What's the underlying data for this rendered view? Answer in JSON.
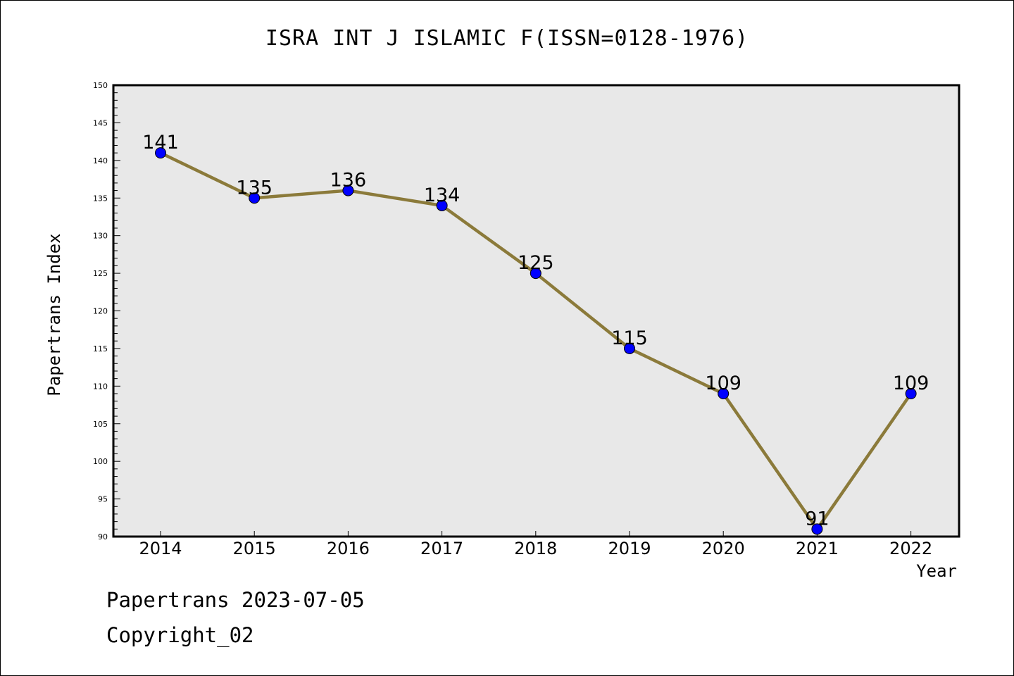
{
  "chart_data": {
    "type": "line",
    "title": "ISRA INT J ISLAMIC F(ISSN=0128-1976)",
    "xlabel": "Year",
    "ylabel": "Papertrans Index",
    "categories": [
      "2014",
      "2015",
      "2016",
      "2017",
      "2018",
      "2019",
      "2020",
      "2021",
      "2022"
    ],
    "values": [
      141,
      135,
      136,
      134,
      125,
      115,
      109,
      91,
      109
    ],
    "ylim": [
      90,
      150
    ],
    "y_ticks": [
      90,
      95,
      100,
      105,
      110,
      115,
      120,
      125,
      130,
      135,
      140,
      145,
      150
    ],
    "grid": false,
    "legend": "none",
    "colors": {
      "line": "#8b7a3a",
      "marker": "#0000ff",
      "plot_background": "#e8e8e8"
    }
  },
  "footer": {
    "line1": "Papertrans 2023-07-05",
    "line2": "Copyright_02"
  }
}
